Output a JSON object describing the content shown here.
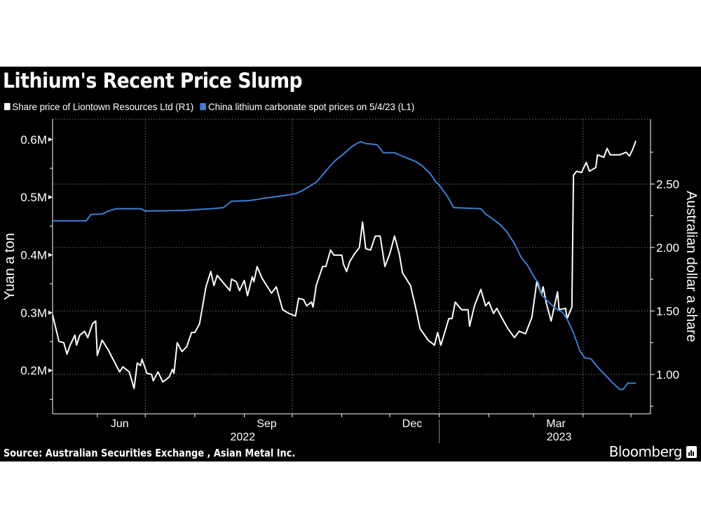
{
  "title": "Lithium's Recent Price Slump",
  "source": "Source: Australian Securities Exchange , Asian Metal Inc.",
  "brand": "Bloomberg",
  "chart_data": {
    "type": "line",
    "title": "Lithium's Recent Price Slump",
    "legend_placement": "top-left",
    "grid": true,
    "left_axis": {
      "label": "Yuan a ton",
      "ticks": [
        200000,
        300000,
        400000,
        500000,
        600000
      ],
      "tick_labels": [
        "0.2M",
        "0.3M",
        "0.4M",
        "0.5M",
        "0.6M"
      ],
      "range": [
        125000,
        635000
      ]
    },
    "right_axis": {
      "label": "Australian dollar a share",
      "ticks": [
        1.0,
        1.5,
        2.0,
        2.5
      ],
      "tick_labels": [
        "1.00",
        "1.50",
        "2.00",
        "2.50"
      ],
      "range": [
        0.69,
        3.01
      ]
    },
    "x_axis": {
      "tick_labels": [
        "Jun",
        "Sep",
        "Dec",
        "Mar"
      ],
      "year_labels": [
        "2022",
        "2023"
      ],
      "range": [
        "2022-05-04",
        "2023-05-04"
      ]
    },
    "series": [
      {
        "name": "Share price of Liontown Resources Ltd  (R1)",
        "axis": "right",
        "color": "#ffffff",
        "points": [
          [
            "2022-05-04",
            1.47
          ],
          [
            "2022-05-08",
            1.26
          ],
          [
            "2022-05-11",
            1.25
          ],
          [
            "2022-05-13",
            1.16
          ],
          [
            "2022-05-15",
            1.23
          ],
          [
            "2022-05-18",
            1.31
          ],
          [
            "2022-05-19",
            1.23
          ],
          [
            "2022-05-21",
            1.31
          ],
          [
            "2022-05-24",
            1.34
          ],
          [
            "2022-05-26",
            1.29
          ],
          [
            "2022-05-29",
            1.4
          ],
          [
            "2022-05-31",
            1.42
          ],
          [
            "2022-06-01",
            1.15
          ],
          [
            "2022-06-04",
            1.27
          ],
          [
            "2022-06-08",
            1.19
          ],
          [
            "2022-06-10",
            1.14
          ],
          [
            "2022-06-15",
            1.02
          ],
          [
            "2022-06-17",
            1.06
          ],
          [
            "2022-06-21",
            1.02
          ],
          [
            "2022-06-24",
            0.89
          ],
          [
            "2022-06-26",
            1.09
          ],
          [
            "2022-06-28",
            1.07
          ],
          [
            "2022-06-29",
            1.12
          ],
          [
            "2022-07-02",
            1.01
          ],
          [
            "2022-07-05",
            1.0
          ],
          [
            "2022-07-06",
            0.95
          ],
          [
            "2022-07-09",
            1.02
          ],
          [
            "2022-07-12",
            0.94
          ],
          [
            "2022-07-16",
            0.98
          ],
          [
            "2022-07-18",
            1.04
          ],
          [
            "2022-07-19",
            1.01
          ],
          [
            "2022-07-21",
            1.25
          ],
          [
            "2022-07-24",
            1.18
          ],
          [
            "2022-07-27",
            1.22
          ],
          [
            "2022-07-30",
            1.33
          ],
          [
            "2022-08-01",
            1.33
          ],
          [
            "2022-08-04",
            1.4
          ],
          [
            "2022-08-08",
            1.69
          ],
          [
            "2022-08-11",
            1.81
          ],
          [
            "2022-08-13",
            1.7
          ],
          [
            "2022-08-15",
            1.78
          ],
          [
            "2022-08-23",
            1.66
          ],
          [
            "2022-08-24",
            1.75
          ],
          [
            "2022-08-27",
            1.73
          ],
          [
            "2022-08-29",
            1.66
          ],
          [
            "2022-09-01",
            1.74
          ],
          [
            "2022-09-03",
            1.62
          ],
          [
            "2022-09-06",
            1.77
          ],
          [
            "2022-09-07",
            1.73
          ],
          [
            "2022-09-09",
            1.85
          ],
          [
            "2022-09-12",
            1.76
          ],
          [
            "2022-09-15",
            1.7
          ],
          [
            "2022-09-18",
            1.64
          ],
          [
            "2022-09-21",
            1.69
          ],
          [
            "2022-09-25",
            1.51
          ],
          [
            "2022-09-29",
            1.48
          ],
          [
            "2022-10-03",
            1.46
          ],
          [
            "2022-10-05",
            1.6
          ],
          [
            "2022-10-08",
            1.59
          ],
          [
            "2022-10-10",
            1.54
          ],
          [
            "2022-10-13",
            1.57
          ],
          [
            "2022-10-14",
            1.53
          ],
          [
            "2022-10-16",
            1.7
          ],
          [
            "2022-10-20",
            1.85
          ],
          [
            "2022-10-22",
            1.85
          ],
          [
            "2022-10-25",
            1.98
          ],
          [
            "2022-10-27",
            1.94
          ],
          [
            "2022-11-01",
            1.94
          ],
          [
            "2022-11-02",
            1.87
          ],
          [
            "2022-11-04",
            1.81
          ],
          [
            "2022-11-06",
            1.89
          ],
          [
            "2022-11-09",
            1.95
          ],
          [
            "2022-11-12",
            2.0
          ],
          [
            "2022-11-14",
            2.2
          ],
          [
            "2022-11-16",
            1.99
          ],
          [
            "2022-11-19",
            1.98
          ],
          [
            "2022-11-22",
            2.09
          ],
          [
            "2022-11-25",
            2.09
          ],
          [
            "2022-11-28",
            1.85
          ],
          [
            "2022-12-01",
            1.95
          ],
          [
            "2022-12-04",
            2.09
          ],
          [
            "2022-12-07",
            1.95
          ],
          [
            "2022-12-09",
            1.8
          ],
          [
            "2022-12-14",
            1.7
          ],
          [
            "2022-12-17",
            1.54
          ],
          [
            "2022-12-20",
            1.36
          ],
          [
            "2022-12-25",
            1.27
          ],
          [
            "2022-12-29",
            1.23
          ],
          [
            "2022-12-31",
            1.33
          ],
          [
            "2023-01-02",
            1.23
          ],
          [
            "2023-01-07",
            1.44
          ],
          [
            "2023-01-09",
            1.44
          ],
          [
            "2023-01-11",
            1.57
          ],
          [
            "2023-01-15",
            1.51
          ],
          [
            "2023-01-19",
            1.51
          ],
          [
            "2023-01-20",
            1.38
          ],
          [
            "2023-01-23",
            1.54
          ],
          [
            "2023-01-27",
            1.67
          ],
          [
            "2023-01-30",
            1.54
          ],
          [
            "2023-02-01",
            1.57
          ],
          [
            "2023-02-04",
            1.48
          ],
          [
            "2023-02-06",
            1.52
          ],
          [
            "2023-02-09",
            1.45
          ],
          [
            "2023-02-13",
            1.36
          ],
          [
            "2023-02-17",
            1.29
          ],
          [
            "2023-02-20",
            1.34
          ],
          [
            "2023-02-24",
            1.32
          ],
          [
            "2023-02-28",
            1.45
          ],
          [
            "2023-03-03",
            1.73
          ],
          [
            "2023-03-06",
            1.63
          ],
          [
            "2023-03-07",
            1.69
          ],
          [
            "2023-03-09",
            1.56
          ],
          [
            "2023-03-12",
            1.42
          ],
          [
            "2023-03-16",
            1.65
          ],
          [
            "2023-03-17",
            1.51
          ],
          [
            "2023-03-21",
            1.52
          ],
          [
            "2023-03-22",
            1.44
          ],
          [
            "2023-03-25",
            1.53
          ],
          [
            "2023-03-26",
            2.57
          ],
          [
            "2023-03-28",
            2.6
          ],
          [
            "2023-03-31",
            2.59
          ],
          [
            "2023-04-03",
            2.67
          ],
          [
            "2023-04-05",
            2.6
          ],
          [
            "2023-04-09",
            2.63
          ],
          [
            "2023-04-10",
            2.73
          ],
          [
            "2023-04-14",
            2.71
          ],
          [
            "2023-04-16",
            2.78
          ],
          [
            "2023-04-18",
            2.73
          ],
          [
            "2023-04-24",
            2.73
          ],
          [
            "2023-04-28",
            2.75
          ],
          [
            "2023-04-30",
            2.72
          ],
          [
            "2023-05-02",
            2.77
          ],
          [
            "2023-05-04",
            2.84
          ]
        ]
      },
      {
        "name": "China lithium carbonate spot prices on 5/4/23 (L1)",
        "axis": "left",
        "color": "#3a7fd5",
        "points": [
          [
            "2022-05-04",
            459000
          ],
          [
            "2022-05-25",
            459000
          ],
          [
            "2022-05-28",
            470000
          ],
          [
            "2022-06-04",
            471000
          ],
          [
            "2022-06-07",
            475000
          ],
          [
            "2022-06-10",
            478000
          ],
          [
            "2022-06-13",
            480000
          ],
          [
            "2022-06-28",
            480000
          ],
          [
            "2022-07-01",
            476000
          ],
          [
            "2022-07-24",
            477000
          ],
          [
            "2022-08-11",
            480000
          ],
          [
            "2022-08-19",
            482000
          ],
          [
            "2022-08-24",
            493000
          ],
          [
            "2022-09-04",
            494000
          ],
          [
            "2022-09-13",
            498000
          ],
          [
            "2022-09-24",
            502000
          ],
          [
            "2022-10-03",
            506000
          ],
          [
            "2022-10-07",
            511000
          ],
          [
            "2022-10-12",
            519000
          ],
          [
            "2022-10-16",
            526000
          ],
          [
            "2022-10-21",
            542000
          ],
          [
            "2022-10-25",
            555000
          ],
          [
            "2022-10-29",
            566000
          ],
          [
            "2022-11-03",
            577000
          ],
          [
            "2022-11-07",
            587000
          ],
          [
            "2022-11-11",
            594000
          ],
          [
            "2022-11-13",
            596000
          ],
          [
            "2022-11-16",
            593000
          ],
          [
            "2022-11-23",
            591000
          ],
          [
            "2022-11-25",
            584000
          ],
          [
            "2022-11-27",
            577000
          ],
          [
            "2022-12-04",
            577000
          ],
          [
            "2022-12-08",
            572000
          ],
          [
            "2022-12-17",
            562000
          ],
          [
            "2022-12-21",
            555000
          ],
          [
            "2022-12-26",
            542000
          ],
          [
            "2022-12-30",
            526000
          ],
          [
            "2023-01-01",
            521000
          ],
          [
            "2023-01-06",
            502000
          ],
          [
            "2023-01-10",
            482000
          ],
          [
            "2023-01-27",
            480000
          ],
          [
            "2023-01-30",
            471000
          ],
          [
            "2023-02-03",
            463000
          ],
          [
            "2023-02-08",
            453000
          ],
          [
            "2023-02-12",
            441000
          ],
          [
            "2023-02-17",
            420000
          ],
          [
            "2023-02-21",
            397000
          ],
          [
            "2023-02-25",
            383000
          ],
          [
            "2023-03-02",
            359000
          ],
          [
            "2023-03-04",
            352000
          ],
          [
            "2023-03-06",
            331000
          ],
          [
            "2023-03-11",
            317000
          ],
          [
            "2023-03-15",
            307000
          ],
          [
            "2023-03-19",
            301000
          ],
          [
            "2023-03-22",
            289000
          ],
          [
            "2023-03-26",
            265000
          ],
          [
            "2023-03-30",
            234000
          ],
          [
            "2023-04-02",
            222000
          ],
          [
            "2023-04-06",
            220000
          ],
          [
            "2023-04-10",
            206000
          ],
          [
            "2023-04-15",
            192000
          ],
          [
            "2023-04-19",
            180000
          ],
          [
            "2023-04-24",
            167000
          ],
          [
            "2023-04-26",
            167000
          ],
          [
            "2023-04-29",
            178000
          ],
          [
            "2023-05-04",
            178000
          ]
        ]
      }
    ]
  }
}
